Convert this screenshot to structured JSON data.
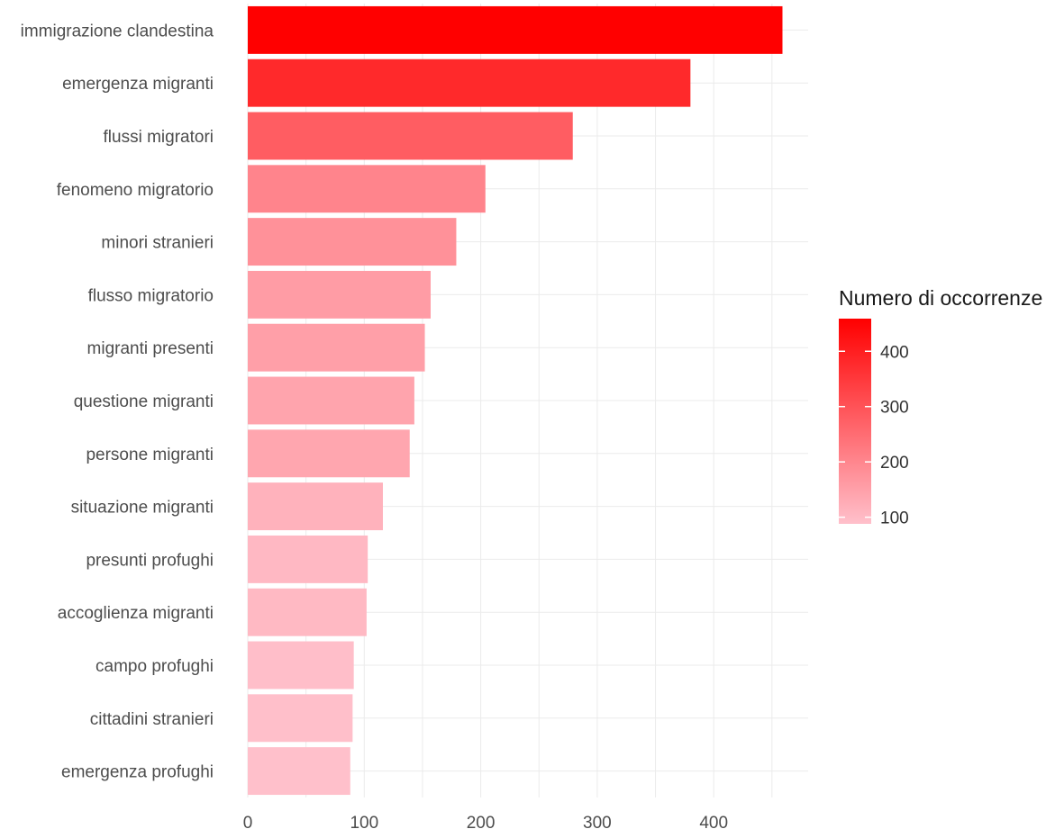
{
  "chart_data": {
    "type": "bar",
    "orientation": "horizontal",
    "categories": [
      "immigrazione clandestina",
      "emergenza migranti",
      "flussi migratori",
      "fenomeno migratorio",
      "minori stranieri",
      "flusso migratorio",
      "migranti presenti",
      "questione migranti",
      "persone migranti",
      "situazione migranti",
      "presunti profughi",
      "accoglienza migranti",
      "campo profughi",
      "cittadini stranieri",
      "emergenza profughi"
    ],
    "values": [
      459,
      380,
      279,
      204,
      179,
      157,
      152,
      143,
      139,
      116,
      103,
      102,
      91,
      90,
      88
    ],
    "xlabel": "",
    "ylabel": "",
    "xlim": [
      0,
      480
    ],
    "x_ticks": [
      "0",
      "100",
      "200",
      "300",
      "400"
    ],
    "x_tick_values": [
      0,
      100,
      200,
      300,
      400
    ],
    "grid": true,
    "legend": {
      "title": "Numero di occorrenze",
      "position": "right",
      "type": "colorbar",
      "range": [
        88,
        459
      ],
      "ticks": [
        "100",
        "200",
        "300",
        "400"
      ],
      "tick_values": [
        100,
        200,
        300,
        400
      ],
      "low_color": "#ffc0cb",
      "high_color": "#ff0000"
    },
    "colors": {
      "low": "#ffc0cb",
      "high": "#ff0000",
      "grid": "#ebebeb",
      "text": "#4d4d4d"
    }
  }
}
